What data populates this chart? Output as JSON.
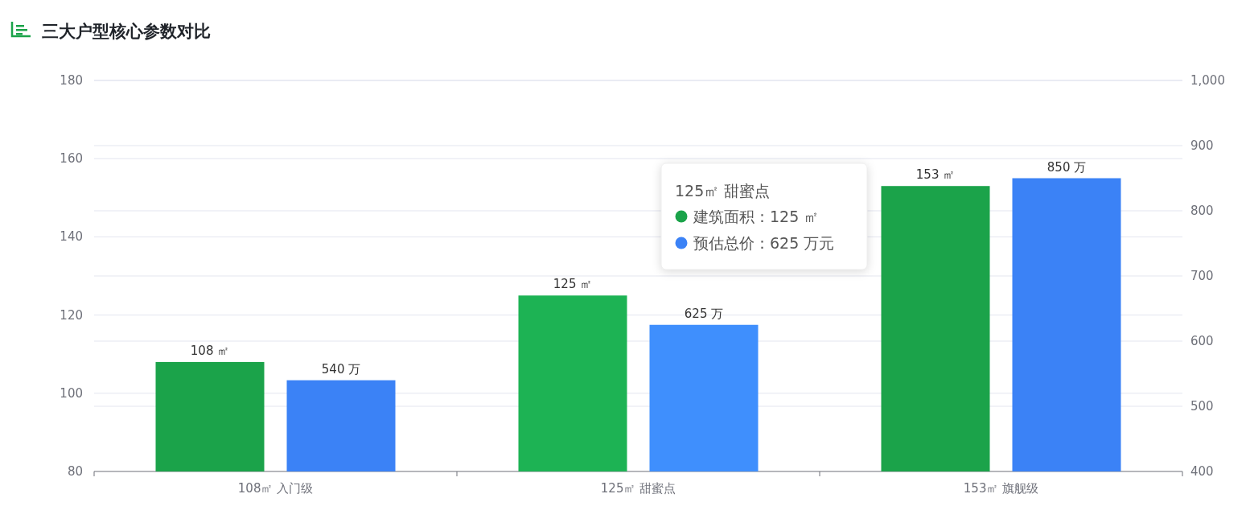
{
  "chart_data": {
    "type": "bar",
    "title": "三大户型核心参数对比",
    "categories": [
      "108㎡ 入门级",
      "125㎡ 甜蜜点",
      "153㎡ 旗舰级"
    ],
    "series": [
      {
        "name": "建筑面积",
        "color": "#1ba34a",
        "colors": [
          "#1ba34a",
          "#1db354",
          "#1ba34a"
        ],
        "values": [
          108,
          125,
          153
        ],
        "value_labels": [
          "108 ㎡",
          "125 ㎡",
          "153 ㎡"
        ]
      },
      {
        "name": "预估总价",
        "color": "#3b82f6",
        "colors": [
          "#3b82f6",
          "#3f8ffd",
          "#3b82f6"
        ],
        "values": [
          540,
          625,
          850
        ],
        "axis": "y2",
        "value_labels": [
          "540 万",
          "625 万",
          "850 万"
        ]
      }
    ],
    "ylim": [
      80,
      180
    ],
    "yticks": [
      80,
      100,
      120,
      140,
      160,
      180
    ],
    "y2lim": [
      400,
      1000
    ],
    "y2ticks": [
      400,
      500,
      600,
      700,
      800,
      900,
      {
        "value": 1000,
        "label": "1,000"
      }
    ],
    "grid": true,
    "legend": "top",
    "legend_title": "125㎡ 甜蜜点",
    "annotations": [
      "：125 ㎡",
      "：625 万元"
    ]
  }
}
